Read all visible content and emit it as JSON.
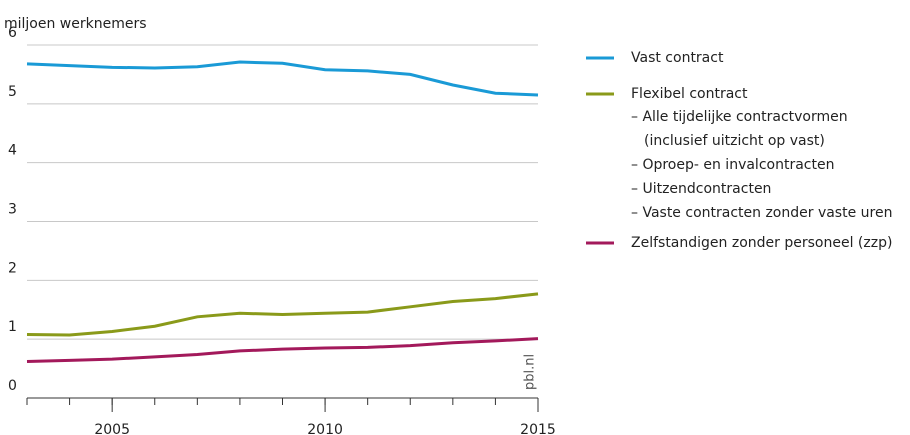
{
  "chart_data": {
    "type": "line",
    "y_label": "miljoen werknemers",
    "source": "pbl.nl",
    "x": [
      2003,
      2004,
      2005,
      2006,
      2007,
      2008,
      2009,
      2010,
      2011,
      2012,
      2013,
      2014,
      2015
    ],
    "xlim": [
      2003,
      2015
    ],
    "xticks": [
      2005,
      2010,
      2015
    ],
    "ylim": [
      0,
      6
    ],
    "yticks": [
      0,
      1,
      2,
      3,
      4,
      5,
      6
    ],
    "grid": true,
    "series": [
      {
        "name": "Vast contract",
        "color": "#1a9ad6",
        "values": [
          5.68,
          5.65,
          5.62,
          5.61,
          5.63,
          5.71,
          5.69,
          5.58,
          5.56,
          5.5,
          5.32,
          5.18,
          5.15
        ]
      },
      {
        "name": "Flexibel contract",
        "color": "#8a9a1a",
        "values": [
          1.08,
          1.07,
          1.13,
          1.22,
          1.38,
          1.44,
          1.42,
          1.44,
          1.46,
          1.55,
          1.64,
          1.69,
          1.77
        ],
        "subitems": [
          "– Alle tijdelijke contractvormen",
          "(inclusief uitzicht op vast)",
          "– Oproep- en invalcontracten",
          "– Uitzendcontracten",
          "– Vaste contracten zonder vaste uren"
        ]
      },
      {
        "name": "Zelfstandigen zonder personeel (zzp)",
        "color": "#a3195b",
        "values": [
          0.62,
          0.64,
          0.66,
          0.7,
          0.74,
          0.8,
          0.83,
          0.85,
          0.86,
          0.89,
          0.94,
          0.97,
          1.01
        ]
      }
    ]
  }
}
